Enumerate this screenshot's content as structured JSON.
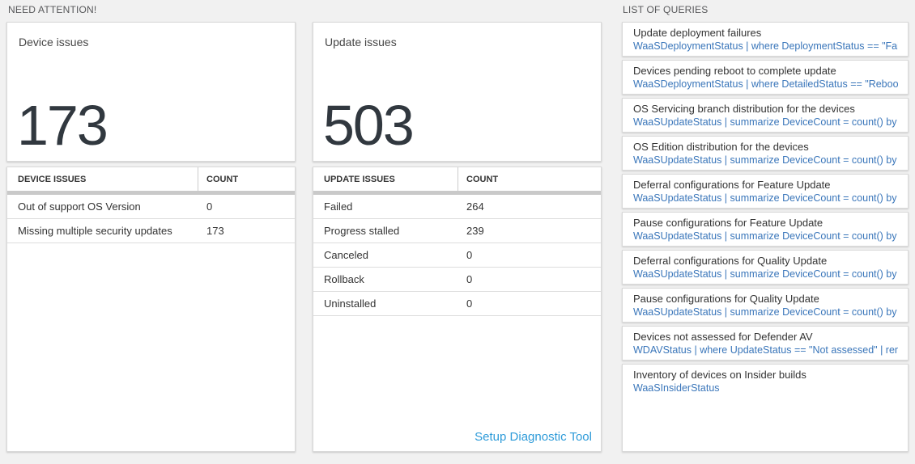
{
  "sections": {
    "need_attention": {
      "label": "NEED ATTENTION!"
    },
    "list_of_queries": {
      "label": "LIST OF QUERIES"
    }
  },
  "device_issues": {
    "title": "Device issues",
    "count": "173",
    "table": {
      "headers": [
        "DEVICE ISSUES",
        "COUNT"
      ],
      "rows": [
        {
          "label": "Out of support OS Version",
          "count": "0"
        },
        {
          "label": "Missing multiple security updates",
          "count": "173"
        }
      ]
    }
  },
  "update_issues": {
    "title": "Update issues",
    "count": "503",
    "table": {
      "headers": [
        "UPDATE ISSUES",
        "COUNT"
      ],
      "rows": [
        {
          "label": "Failed",
          "count": "264"
        },
        {
          "label": "Progress stalled",
          "count": "239"
        },
        {
          "label": "Canceled",
          "count": "0"
        },
        {
          "label": "Rollback",
          "count": "0"
        },
        {
          "label": "Uninstalled",
          "count": "0"
        }
      ]
    },
    "link_label": "Setup Diagnostic Tool"
  },
  "queries": [
    {
      "title": "Update deployment failures",
      "query": "WaaSDeploymentStatus | where DeploymentStatus == \"Failed\" |..."
    },
    {
      "title": "Devices pending reboot to complete update",
      "query": "WaaSDeploymentStatus | where DetailedStatus == \"Reboot pend..."
    },
    {
      "title": "OS Servicing branch distribution for the devices",
      "query": "WaaSUpdateStatus | summarize DeviceCount = count() by OSSer..."
    },
    {
      "title": "OS Edition distribution for the devices",
      "query": "WaaSUpdateStatus | summarize DeviceCount = count() by OSEdit..."
    },
    {
      "title": "Deferral configurations for Feature Update",
      "query": "WaaSUpdateStatus | summarize DeviceCount = count() by Featur..."
    },
    {
      "title": "Pause configurations for Feature Update",
      "query": "WaaSUpdateStatus | summarize DeviceCount = count() by Featur..."
    },
    {
      "title": "Deferral configurations for Quality Update",
      "query": "WaaSUpdateStatus | summarize DeviceCount = count() by Qualit..."
    },
    {
      "title": "Pause configurations for Quality Update",
      "query": "WaaSUpdateStatus | summarize DeviceCount = count() by Qualit..."
    },
    {
      "title": "Devices not assessed for Defender AV",
      "query": "WDAVStatus | where UpdateStatus == \"Not assessed\" | render ta..."
    },
    {
      "title": "Inventory of devices on Insider builds",
      "query": "WaaSInsiderStatus"
    }
  ],
  "colors": {
    "page_background": "#f1f1f1",
    "tile_background": "#ffffff",
    "big_number": "#31383f",
    "query_link_blue": "#3a76ba",
    "diagnostic_link_blue": "#2e9bd9",
    "thick_divider": "#c9c9c9"
  }
}
